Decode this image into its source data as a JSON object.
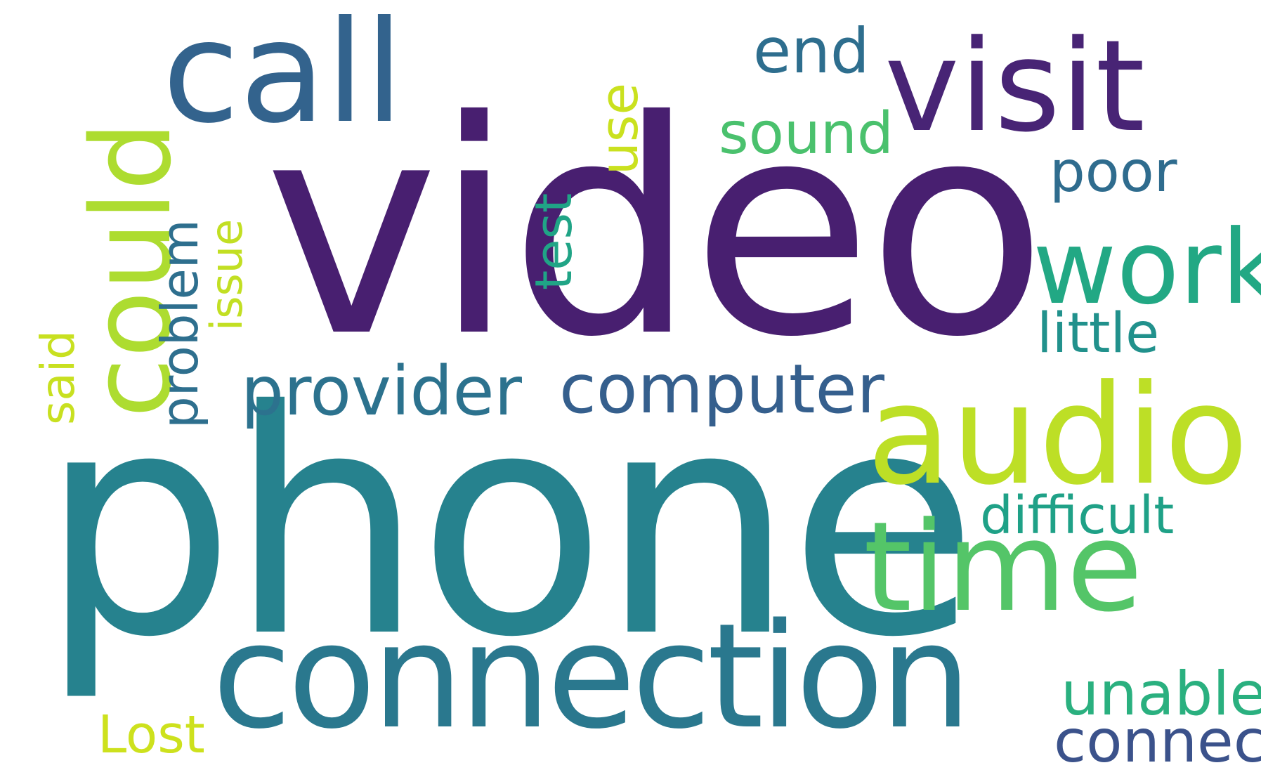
{
  "word_cloud": {
    "words": [
      {
        "text": "video",
        "color": "#481f70",
        "orientation": "horizontal"
      },
      {
        "text": "phone",
        "color": "#26828e",
        "orientation": "horizontal"
      },
      {
        "text": "connection",
        "color": "#2a788e",
        "orientation": "horizontal"
      },
      {
        "text": "call",
        "color": "#33638d",
        "orientation": "horizontal"
      },
      {
        "text": "visit",
        "color": "#482475",
        "orientation": "horizontal"
      },
      {
        "text": "audio",
        "color": "#bddf26",
        "orientation": "horizontal"
      },
      {
        "text": "time",
        "color": "#54c568",
        "orientation": "horizontal"
      },
      {
        "text": "work",
        "color": "#22a884",
        "orientation": "horizontal"
      },
      {
        "text": "could",
        "color": "#addc30",
        "orientation": "vertical"
      },
      {
        "text": "provider",
        "color": "#2c728e",
        "orientation": "horizontal"
      },
      {
        "text": "computer",
        "color": "#355f8d",
        "orientation": "horizontal"
      },
      {
        "text": "problem",
        "color": "#2e6f8e",
        "orientation": "vertical"
      },
      {
        "text": "issue",
        "color": "#c2df23",
        "orientation": "vertical"
      },
      {
        "text": "said",
        "color": "#c8e020",
        "orientation": "vertical"
      },
      {
        "text": "test",
        "color": "#20a486",
        "orientation": "vertical"
      },
      {
        "text": "use",
        "color": "#cae11f",
        "orientation": "vertical"
      },
      {
        "text": "end",
        "color": "#2e6e8e",
        "orientation": "horizontal"
      },
      {
        "text": "sound",
        "color": "#4ac16d",
        "orientation": "horizontal"
      },
      {
        "text": "poor",
        "color": "#2f6c8e",
        "orientation": "horizontal"
      },
      {
        "text": "little",
        "color": "#21918c",
        "orientation": "horizontal"
      },
      {
        "text": "difficult",
        "color": "#1fa187",
        "orientation": "horizontal"
      },
      {
        "text": "unable",
        "color": "#2ab07f",
        "orientation": "horizontal"
      },
      {
        "text": "connect",
        "color": "#3b528b",
        "orientation": "horizontal"
      },
      {
        "text": "Lost",
        "color": "#cde11d",
        "orientation": "horizontal"
      }
    ]
  }
}
